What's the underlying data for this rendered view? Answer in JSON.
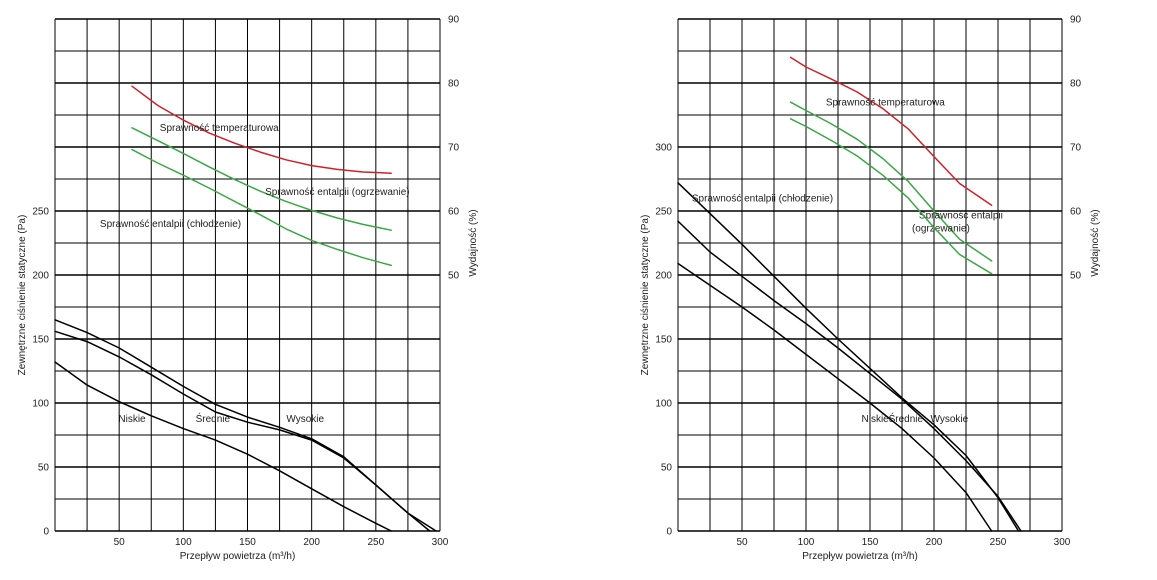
{
  "colors": {
    "fan": "#000000",
    "temperature": "#d0202a",
    "enthalpy": "#3aa845"
  },
  "chart_data": [
    {
      "type": "line",
      "xlabel": "Przepływ powietrza (m³/h)",
      "ylabel": "Zewnętrzne ciśnienie statyczne (Pa)",
      "y2label": "Wydajność (%)",
      "xlim": [
        0,
        300
      ],
      "ylim": [
        0,
        400
      ],
      "y2lim": [
        10,
        90
      ],
      "x_ticks": [
        50,
        100,
        150,
        200,
        250,
        300
      ],
      "y_ticks": [
        0,
        50,
        100,
        150,
        200,
        250
      ],
      "y2_ticks": [
        50,
        60,
        70,
        80,
        90
      ],
      "series": [
        {
          "name": "Niskie",
          "axis": "left",
          "color": "fan",
          "label_at": [
            60,
            85
          ],
          "x": [
            0,
            25,
            50,
            75,
            100,
            125,
            150,
            175,
            200,
            225,
            250,
            262
          ],
          "y": [
            132,
            114,
            101,
            90,
            80,
            71,
            60,
            47,
            33,
            19,
            6,
            0
          ]
        },
        {
          "name": "Średnie",
          "axis": "left",
          "color": "fan",
          "label_at": [
            123,
            85
          ],
          "x": [
            0,
            25,
            50,
            75,
            100,
            125,
            150,
            175,
            200,
            225,
            250,
            275,
            292
          ],
          "y": [
            156,
            148,
            136,
            122,
            107,
            93,
            85,
            79,
            71,
            57,
            36,
            14,
            0
          ]
        },
        {
          "name": "Wysokie",
          "axis": "left",
          "color": "fan",
          "label_at": [
            195,
            85
          ],
          "x": [
            0,
            25,
            50,
            75,
            100,
            125,
            150,
            175,
            200,
            225,
            250,
            275,
            297
          ],
          "y": [
            165,
            155,
            143,
            128,
            113,
            99,
            89,
            81,
            72,
            58,
            36,
            14,
            0
          ]
        },
        {
          "name": "Sprawność temperaturowa",
          "axis": "right",
          "color": "temperature",
          "label_at": [
            128,
            72.5
          ],
          "x": [
            60,
            80,
            100,
            120,
            140,
            160,
            180,
            200,
            220,
            240,
            262
          ],
          "y": [
            79.5,
            76.5,
            74.2,
            72.2,
            70.6,
            69.2,
            68.0,
            67.1,
            66.5,
            66.1,
            65.9
          ]
        },
        {
          "name": "Sprawność entalpii (ogrzewanie)",
          "axis": "right",
          "color": "enthalpy",
          "label_at": [
            220,
            62.5
          ],
          "x": [
            60,
            80,
            100,
            120,
            140,
            160,
            180,
            200,
            220,
            240,
            262
          ],
          "y": [
            73.0,
            71.0,
            69.0,
            66.9,
            64.9,
            63.1,
            61.5,
            60.1,
            58.9,
            57.9,
            57.0
          ]
        },
        {
          "name": "Sprawność entalpii (chłodzenie)",
          "axis": "right",
          "color": "enthalpy",
          "label_at": [
            90,
            57.5
          ],
          "x": [
            60,
            80,
            100,
            120,
            140,
            160,
            180,
            200,
            220,
            240,
            262
          ],
          "y": [
            69.6,
            67.5,
            65.6,
            63.6,
            61.5,
            59.4,
            57.2,
            55.4,
            54.0,
            52.7,
            51.5
          ]
        }
      ]
    },
    {
      "type": "line",
      "xlabel": "Przepływ powietrza (m³/h)",
      "ylabel": "Zewnętrzne ciśnienie statyczne (Pa)",
      "y2label": "Wydajność (%)",
      "xlim": [
        0,
        300
      ],
      "ylim": [
        0,
        400
      ],
      "y2lim": [
        10,
        90
      ],
      "x_ticks": [
        50,
        100,
        150,
        200,
        250,
        300
      ],
      "y_ticks": [
        0,
        50,
        100,
        150,
        200,
        250,
        300
      ],
      "y2_ticks": [
        50,
        60,
        70,
        80,
        90
      ],
      "series": [
        {
          "name": "Niskie",
          "axis": "left",
          "color": "fan",
          "label_at": [
            154,
            85
          ],
          "x": [
            0,
            25,
            50,
            75,
            100,
            125,
            150,
            175,
            200,
            225,
            245
          ],
          "y": [
            209,
            192,
            175,
            157,
            138,
            119,
            100,
            80,
            57,
            30,
            0
          ]
        },
        {
          "name": "Średnie",
          "axis": "left",
          "color": "fan",
          "label_at": [
            178,
            85
          ],
          "x": [
            0,
            25,
            50,
            75,
            100,
            125,
            150,
            175,
            200,
            225,
            250,
            268
          ],
          "y": [
            242,
            218,
            199,
            180,
            162,
            143,
            123,
            103,
            80,
            55,
            27,
            0
          ]
        },
        {
          "name": "Wysokie",
          "axis": "left",
          "color": "fan",
          "label_at": [
            212,
            85
          ],
          "x": [
            0,
            25,
            50,
            75,
            100,
            125,
            150,
            175,
            200,
            225,
            250,
            266
          ],
          "y": [
            272,
            248,
            224,
            199,
            174,
            150,
            127,
            104,
            83,
            59,
            26,
            0
          ]
        },
        {
          "name": "Sprawność temperaturowa",
          "axis": "right",
          "color": "temperature",
          "label_at": [
            162,
            76.5
          ],
          "x": [
            88,
            100,
            120,
            140,
            160,
            180,
            200,
            220,
            245
          ],
          "y": [
            84.0,
            82.5,
            80.6,
            78.6,
            76.0,
            72.8,
            68.5,
            64.3,
            60.9
          ]
        },
        {
          "name": "Sprawność entalpii (ogrzewanie)",
          "axis": "right",
          "color": "enthalpy",
          "label_at": [
            221,
            58.8
          ],
          "label_lines": [
            "Sprawność entalpii",
            "(ogrzewanie)"
          ],
          "x": [
            88,
            100,
            120,
            140,
            160,
            180,
            200,
            220,
            245
          ],
          "y": [
            77.0,
            75.7,
            73.6,
            71.2,
            68.2,
            64.6,
            60.0,
            55.6,
            52.2
          ]
        },
        {
          "name": "Sprawność entalpii (chłodzenie)",
          "axis": "right",
          "color": "enthalpy",
          "label_at": [
            66,
            61.5
          ],
          "x": [
            88,
            100,
            120,
            140,
            160,
            180,
            200,
            220,
            245
          ],
          "y": [
            74.4,
            73.2,
            71.0,
            68.6,
            65.6,
            62.0,
            57.4,
            53.2,
            50.2
          ]
        }
      ]
    }
  ]
}
